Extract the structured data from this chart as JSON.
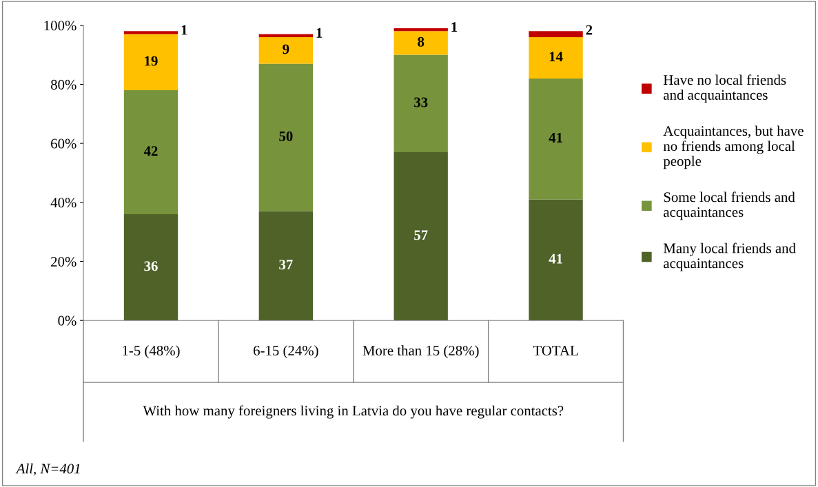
{
  "chart_data": {
    "type": "bar",
    "stacked": true,
    "categories": [
      "1-5 (48%)",
      "6-15 (24%)",
      "More than 15 (28%)",
      "TOTAL"
    ],
    "series": [
      {
        "name": "Many local friends and acquaintances",
        "color": "#4f6228",
        "values": [
          36,
          37,
          57,
          41
        ]
      },
      {
        "name": "Some local friends and acquaintances",
        "color": "#77933c",
        "values": [
          42,
          50,
          33,
          41
        ]
      },
      {
        "name": "Acquaintances, but have no friends among local people",
        "color": "#ffc000",
        "values": [
          19,
          9,
          8,
          14
        ]
      },
      {
        "name": "Have no local friends and acquaintances",
        "color": "#c00000",
        "values": [
          1,
          1,
          1,
          2
        ]
      }
    ],
    "ylim": [
      0,
      100
    ],
    "yticks": [
      {
        "value": 0,
        "label": "0%"
      },
      {
        "value": 20,
        "label": "20%"
      },
      {
        "value": 40,
        "label": "40%"
      },
      {
        "value": 60,
        "label": "60%"
      },
      {
        "value": 80,
        "label": "80%"
      },
      {
        "value": 100,
        "label": "100%"
      }
    ],
    "xlabel": "With how many foreigners living in Latvia do you have regular contacts?",
    "annotations": [
      "All, N=401"
    ],
    "data_labels": true,
    "legend": "right",
    "grid": false
  }
}
